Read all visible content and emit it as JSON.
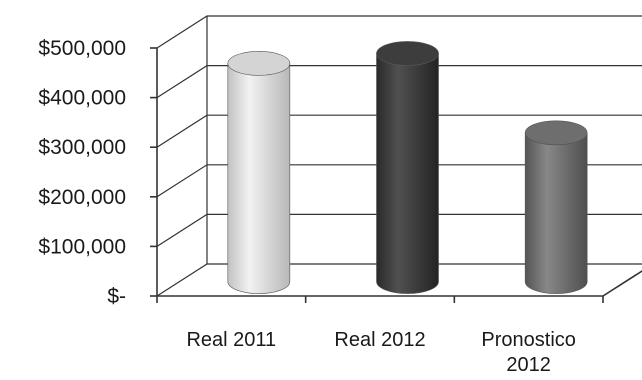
{
  "chart_data": {
    "type": "bar",
    "style": "3d-cylinder",
    "categories": [
      "Real 2011",
      "Real 2012",
      "Pronostico 2012"
    ],
    "category_lines": [
      [
        "Real 2011"
      ],
      [
        "Real 2012"
      ],
      [
        "Pronostico",
        "2012"
      ]
    ],
    "values": [
      440000,
      460000,
      300000
    ],
    "bar_colors": [
      "#d4d4d4",
      "#3d3d3d",
      "#6e6e6e"
    ],
    "ylim": [
      0,
      500000
    ],
    "yticks": [
      0,
      100000,
      200000,
      300000,
      400000,
      500000
    ],
    "ytick_labels": [
      "$-",
      "$100,000",
      "$200,000",
      "$300,000",
      "$400,000",
      "$500,000"
    ],
    "grid": true,
    "legend": "none",
    "title": "",
    "xlabel": "",
    "ylabel": ""
  }
}
